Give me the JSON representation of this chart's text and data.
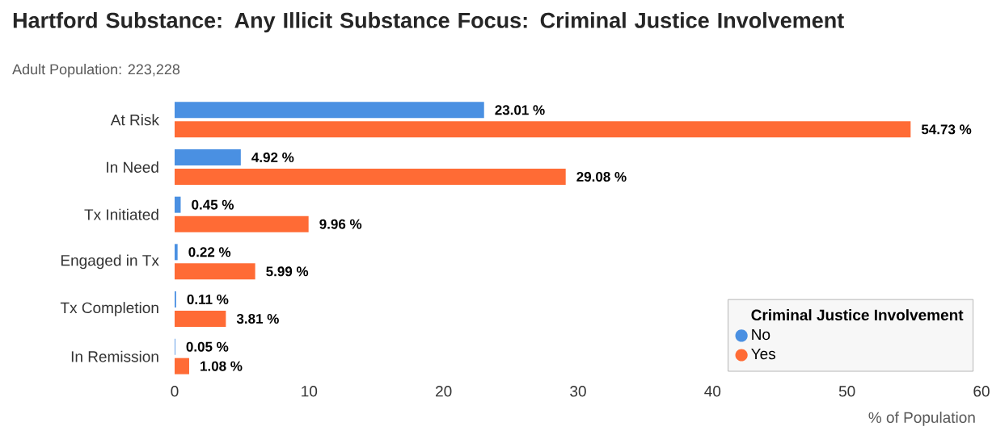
{
  "chart_data": {
    "type": "bar",
    "orientation": "horizontal",
    "title": "Hartford Substance: Any Illicit Substance Focus: Criminal Justice Involvement",
    "subtitle": "Adult Population: 223,228",
    "xlabel": "% of Population",
    "legend_title": "Criminal Justice Involvement",
    "legend": "bottom right",
    "grid": false,
    "categories": [
      "At Risk",
      "In Need",
      "Tx Initiated",
      "Engaged in Tx",
      "Tx Completion",
      "In Remission"
    ],
    "series": [
      {
        "name": "No",
        "color": "#4a90e2",
        "values": [
          23.01,
          4.92,
          0.45,
          0.22,
          0.11,
          0.05
        ],
        "value_labels": [
          "23.01 %",
          "4.92 %",
          "0.45 %",
          "0.22 %",
          "0.11 %",
          "0.05 %"
        ]
      },
      {
        "name": "Yes",
        "color": "#ff6b35",
        "values": [
          54.73,
          29.08,
          9.96,
          5.99,
          3.81,
          1.08
        ],
        "value_labels": [
          "54.73 %",
          "29.08 %",
          "9.96 %",
          "5.99 %",
          "3.81 %",
          "1.08 %"
        ]
      }
    ],
    "xlim": [
      0,
      60
    ],
    "xticks": [
      0,
      10,
      20,
      30,
      40,
      50,
      60
    ]
  }
}
